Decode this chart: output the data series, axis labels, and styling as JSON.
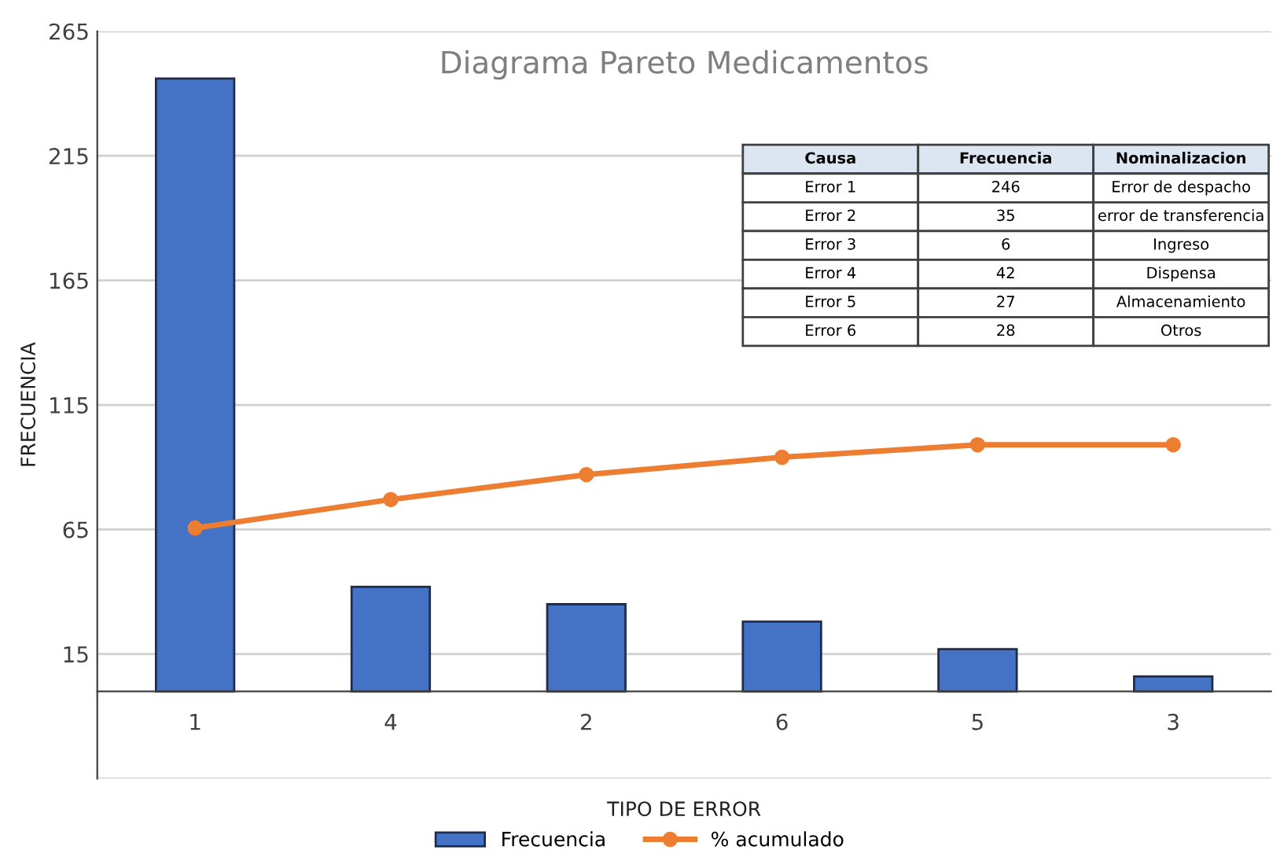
{
  "chart_data": {
    "type": "bar",
    "title": "Diagrama Pareto Medicamentos",
    "xlabel": "TIPO DE ERROR",
    "ylabel": "FRECUENCIA",
    "categories": [
      "1",
      "4",
      "2",
      "6",
      "5",
      "3"
    ],
    "series": [
      {
        "name": "Frecuencia",
        "color": "#4472c4",
        "values": [
          246,
          42,
          35,
          28,
          17,
          6
        ]
      },
      {
        "name": "% acumulado",
        "type": "line",
        "color": "#ed7d31",
        "marker": "circle",
        "values": [
          65.6,
          77,
          87,
          94,
          99,
          99
        ]
      }
    ],
    "ylim": [
      -35,
      265
    ],
    "yticks": [
      {
        "value": -35,
        "label": null
      },
      15,
      65,
      115,
      165,
      215,
      265
    ],
    "grid": "y",
    "legend": "bottom",
    "annotations": [
      "Causa",
      "Frecuencia",
      "Nominalizacion",
      "Error 1",
      "246",
      "Error de despacho",
      "Error 2",
      "35",
      "error de transferencia",
      "Error 3",
      "6",
      "Ingreso",
      "Error 4",
      "42",
      "Dispensa",
      "Error 5",
      "27",
      "Almacenamiento",
      "Error 6",
      "28",
      "Otros"
    ]
  }
}
